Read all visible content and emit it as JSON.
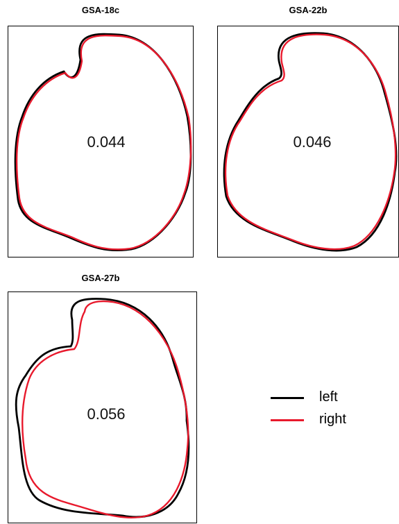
{
  "colors": {
    "left": "#000000",
    "right": "#e8192c"
  },
  "panels": [
    {
      "id": "p1",
      "title": "GSA-18c",
      "value": "0.044",
      "shape": "A"
    },
    {
      "id": "p2",
      "title": "GSA-22b",
      "value": "0.046",
      "shape": "B"
    },
    {
      "id": "p3",
      "title": "GSA-27b",
      "value": "0.056",
      "shape": "C"
    }
  ],
  "legend": {
    "items": [
      {
        "label": "left",
        "color": "#000000"
      },
      {
        "label": "right",
        "color": "#e8192c"
      }
    ]
  }
}
